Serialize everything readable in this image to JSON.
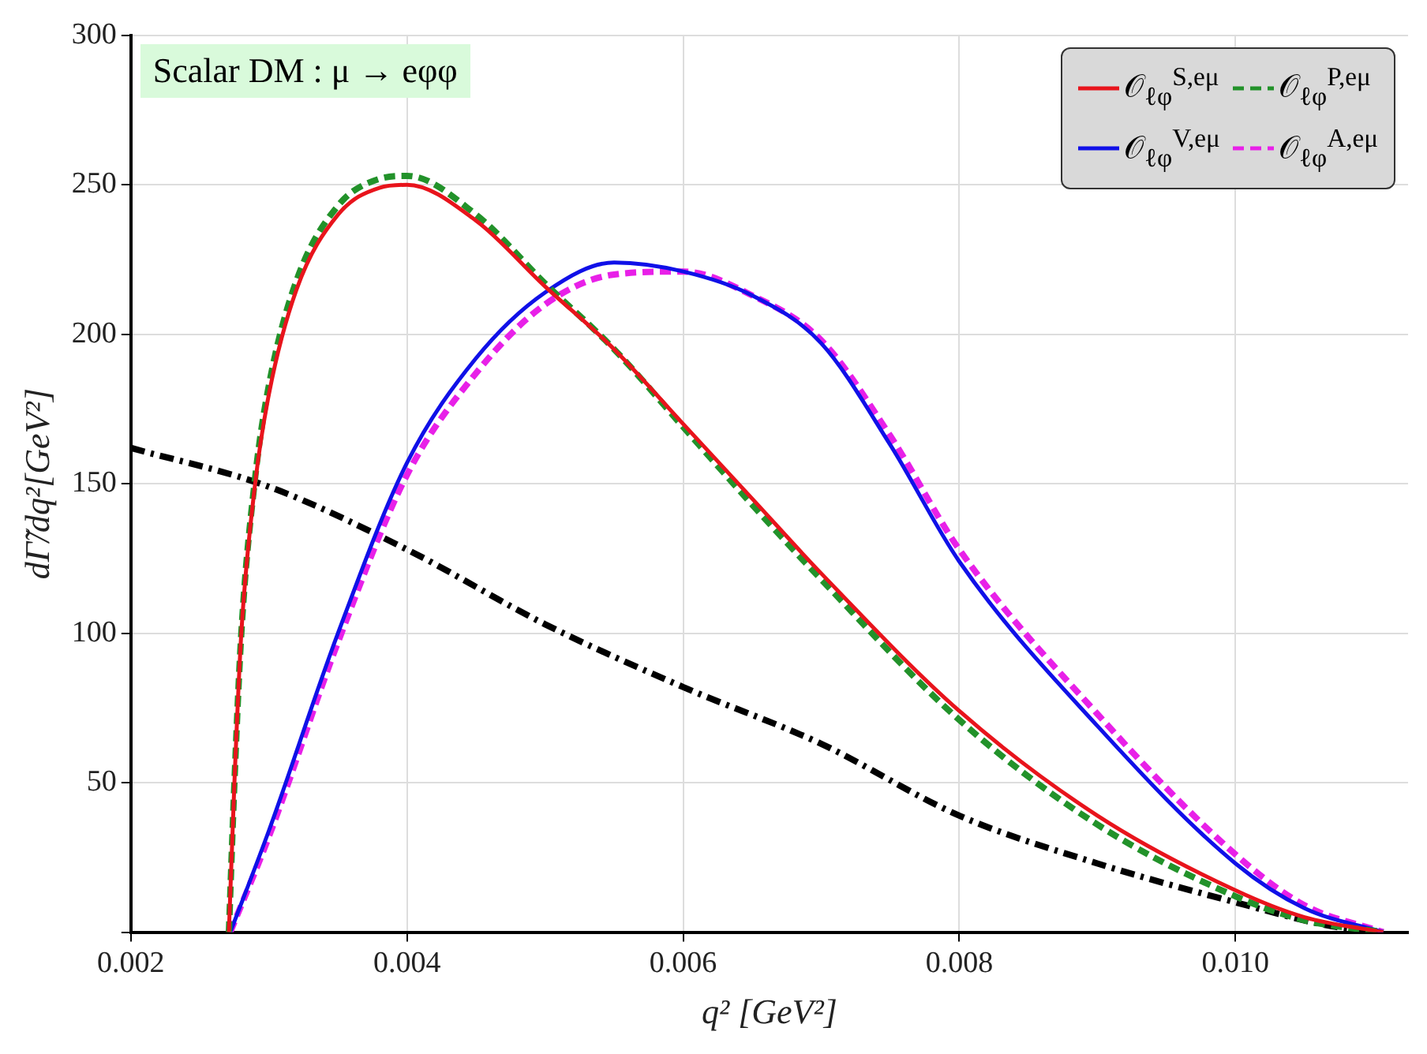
{
  "chart_data": {
    "type": "line",
    "xlabel": "q² [GeV²]",
    "ylabel": "dΓ̃/dq²[GeV²]",
    "annotations": [
      "Scalar DM : μ → eφφ"
    ],
    "xlim": [
      0.002,
      0.01125
    ],
    "xticks": [
      {
        "value": 0.002,
        "label": "0.002"
      },
      {
        "value": 0.004,
        "label": "0.004"
      },
      {
        "value": 0.006,
        "label": "0.006"
      },
      {
        "value": 0.008,
        "label": "0.008"
      },
      {
        "value": 0.01,
        "label": "0.010"
      }
    ],
    "ylim": [
      0,
      300
    ],
    "yticks": [
      {
        "value": 0,
        "label": null
      },
      50,
      100,
      150,
      200,
      250,
      300
    ],
    "grid": true,
    "legend": "top right",
    "marker": "none",
    "series": [
      {
        "name": "𝒪$_{ℓφ}$$^{S,eμ}$",
        "color": "#e8141c",
        "line_style": "solid",
        "x": [
          0.00271,
          0.00275,
          0.0028,
          0.0029,
          0.003,
          0.0032,
          0.0035,
          0.0038,
          0.004,
          0.0045,
          0.005,
          0.0055,
          0.006,
          0.0065,
          0.007,
          0.008,
          0.009,
          0.01,
          0.0105,
          0.01107
        ],
        "values": [
          0,
          50,
          100,
          150,
          180,
          215,
          240,
          249,
          250,
          238,
          216,
          195,
          170,
          145,
          120,
          74,
          39,
          14,
          5,
          0
        ]
      },
      {
        "name": "𝒪$_{ℓφ}$$^{P,eμ}$",
        "color": "#22922a",
        "line_style": "dashed",
        "x": [
          0.00271,
          0.00275,
          0.0028,
          0.0029,
          0.003,
          0.0032,
          0.0035,
          0.0038,
          0.004,
          0.0045,
          0.005,
          0.0055,
          0.006,
          0.0065,
          0.007,
          0.008,
          0.009,
          0.01,
          0.0105,
          0.01107
        ],
        "values": [
          0,
          50,
          100,
          152,
          183,
          218,
          243,
          252,
          253,
          240,
          217,
          195,
          169,
          143,
          118,
          71,
          36,
          12,
          4,
          0
        ]
      },
      {
        "name": "𝒪$_{ℓφ}$$^{V,eμ}$",
        "color": "#1010e8",
        "line_style": "solid",
        "x": [
          0.00272,
          0.003,
          0.0035,
          0.004,
          0.0045,
          0.005,
          0.0055,
          0.006,
          0.0065,
          0.007,
          0.0075,
          0.008,
          0.009,
          0.01,
          0.0105,
          0.01107
        ],
        "values": [
          0,
          34,
          100,
          157,
          192,
          214,
          224,
          221,
          213,
          197,
          163,
          124,
          69,
          23,
          8,
          0
        ]
      },
      {
        "name": "𝒪$_{ℓφ}$$^{A,eμ}$",
        "color": "#e820e8",
        "line_style": "dashed",
        "x": [
          0.00272,
          0.003,
          0.0035,
          0.004,
          0.0045,
          0.005,
          0.0055,
          0.006,
          0.0065,
          0.007,
          0.0075,
          0.008,
          0.009,
          0.01,
          0.0105,
          0.01107
        ],
        "values": [
          0,
          32,
          97,
          153,
          187,
          210,
          220,
          221,
          213,
          198,
          166,
          128,
          73,
          26,
          9,
          0
        ]
      },
      {
        "color": "#000000",
        "line_style": "dashdot",
        "x": [
          0.002,
          0.003,
          0.004,
          0.005,
          0.006,
          0.007,
          0.008,
          0.009,
          0.01,
          0.0107,
          0.01107
        ],
        "values": [
          162,
          149,
          128,
          103,
          82,
          63,
          39,
          23,
          10,
          2,
          0
        ]
      }
    ]
  }
}
